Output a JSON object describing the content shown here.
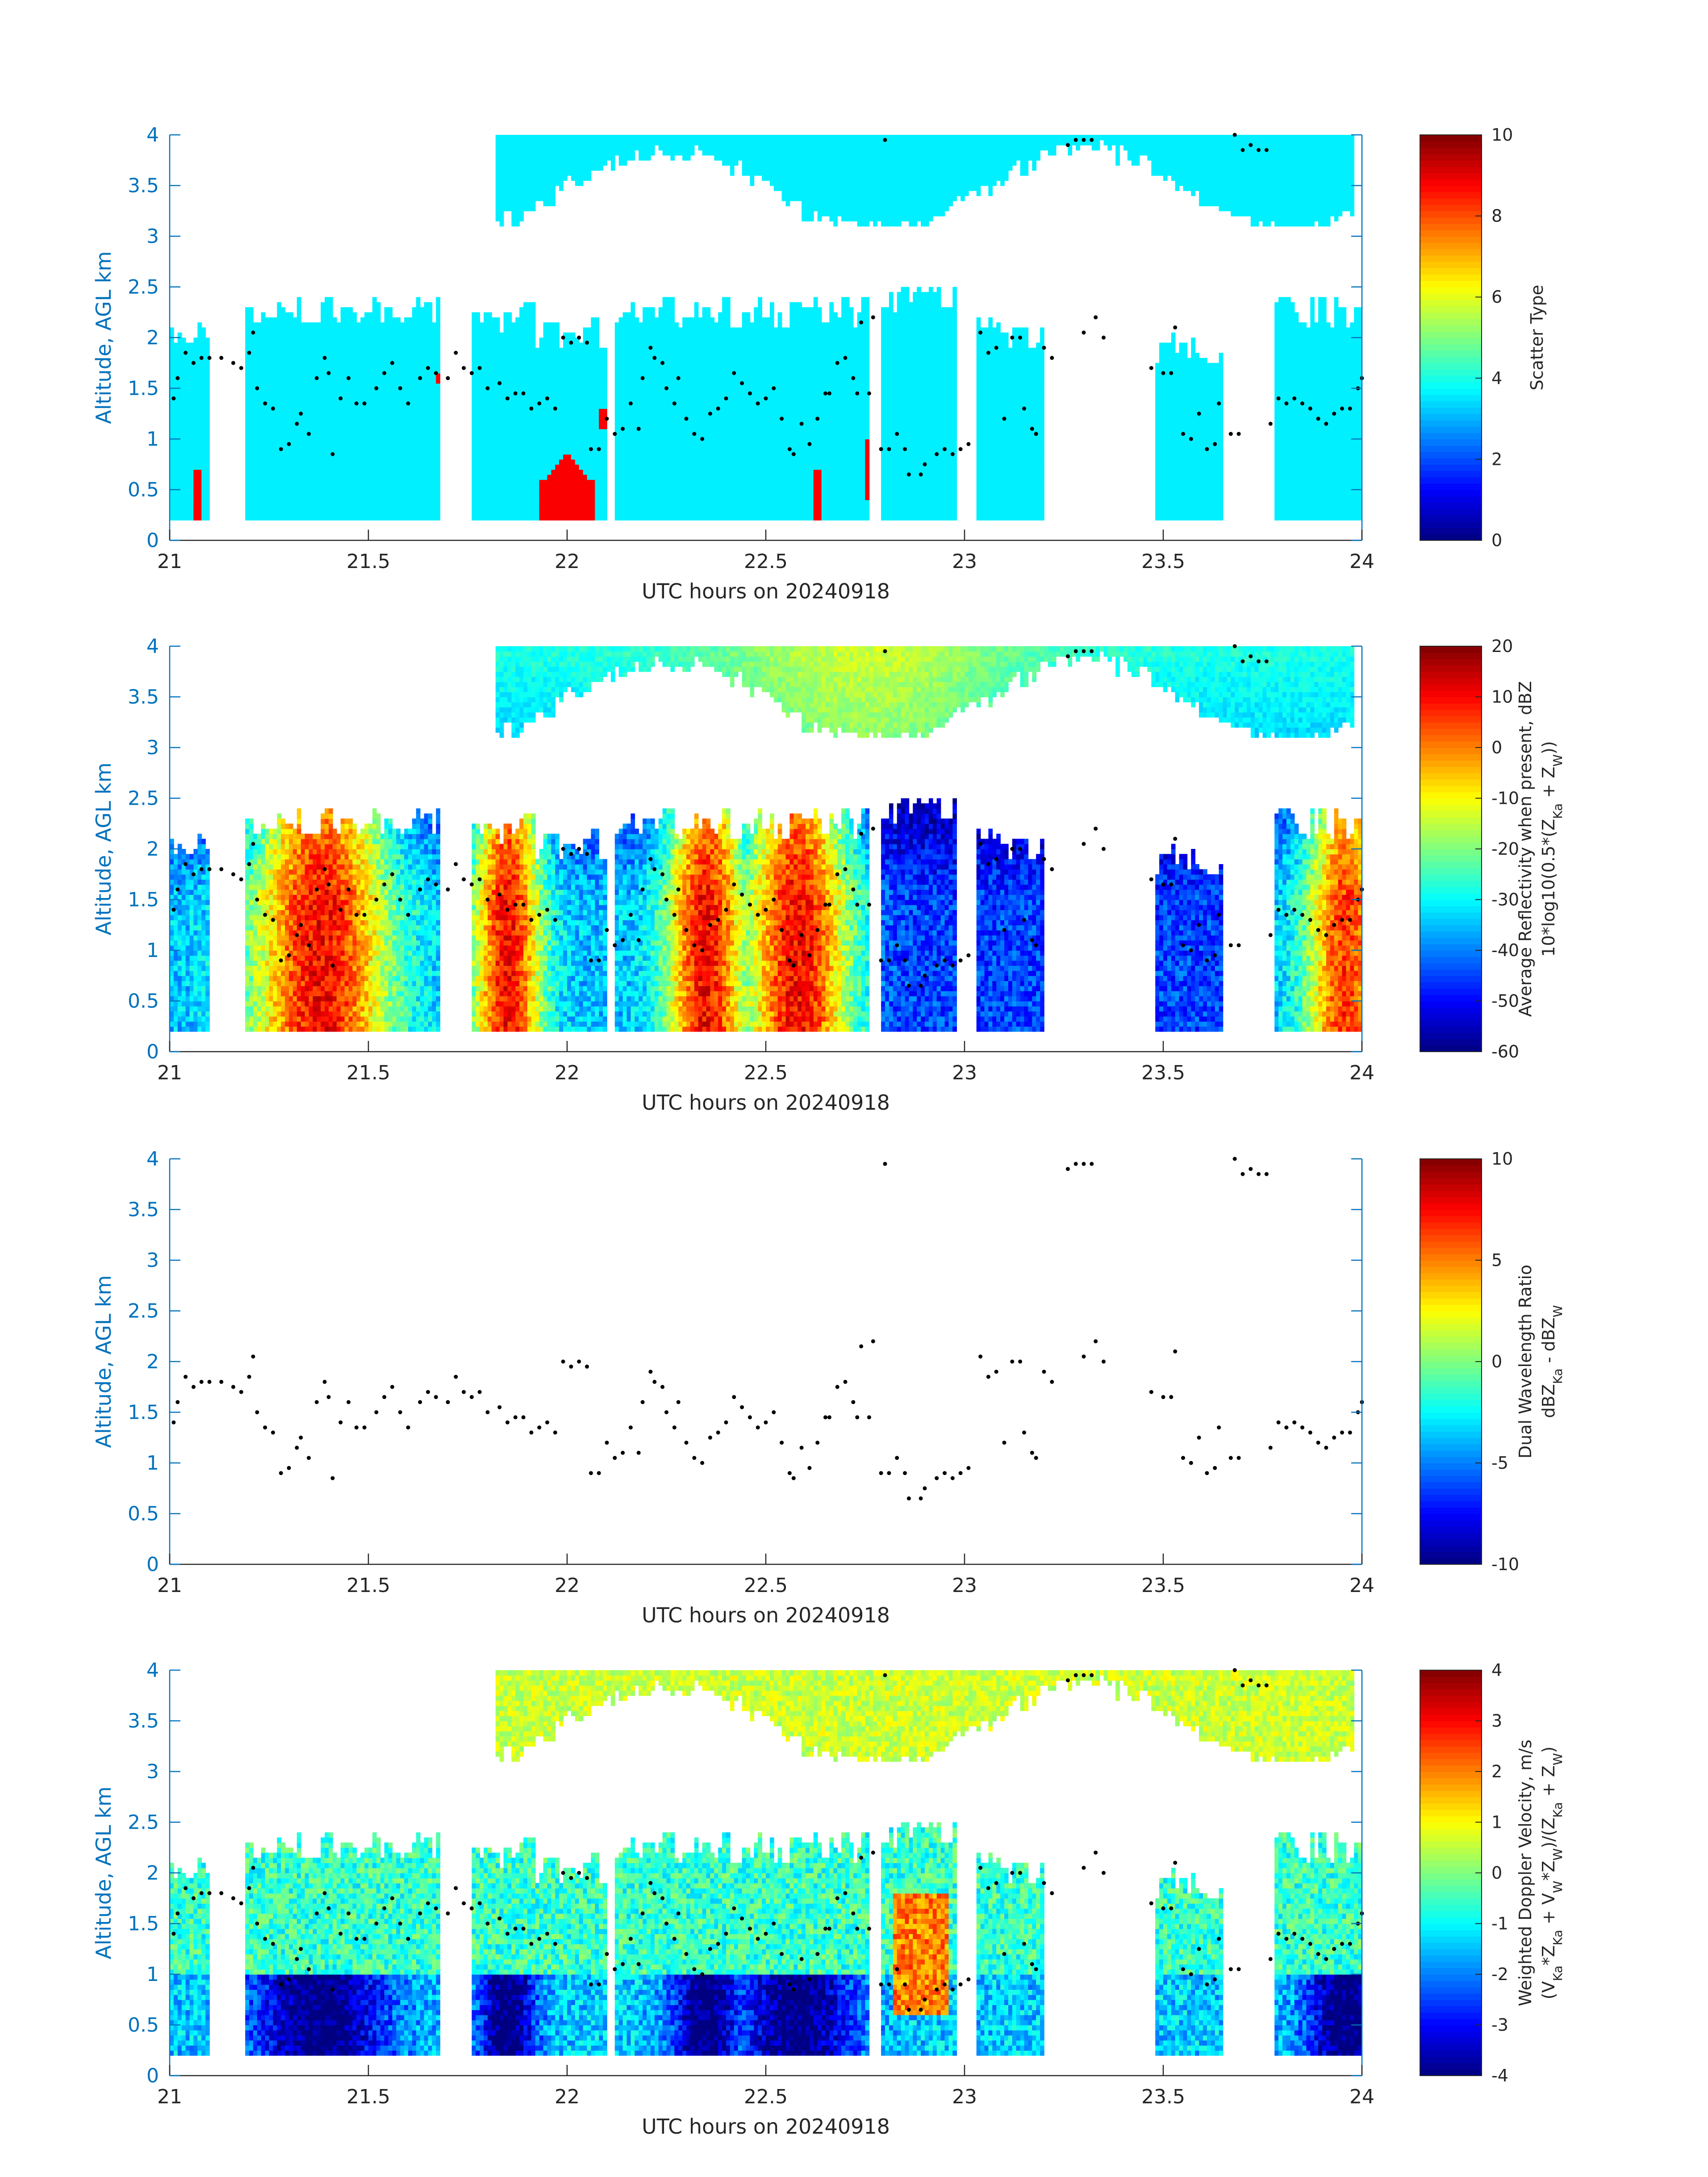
{
  "chart_data": [
    {
      "type": "heatmap",
      "quantity": "scatter",
      "xlabel": "UTC hours on 20240918",
      "ylabel": "Altitude, AGL km",
      "xlim": [
        21,
        24
      ],
      "ylim": [
        0,
        4
      ],
      "xticks": [
        "21",
        "21.5",
        "22",
        "22.5",
        "23",
        "23.5",
        "24"
      ],
      "yticks": [
        "0",
        "0.5",
        "1",
        "1.5",
        "2",
        "2.5",
        "3",
        "3.5",
        "4"
      ],
      "colorbar": {
        "label_lines": [
          "Scatter Type"
        ],
        "clim": [
          0,
          10
        ],
        "ticks": [
          "0",
          "2",
          "4",
          "6",
          "8",
          "10"
        ],
        "colormap": "jet"
      },
      "dominant_value": 3.6,
      "secondary_value": 8.8
    },
    {
      "type": "heatmap",
      "quantity": "refl",
      "xlabel": "UTC hours on 20240918",
      "ylabel": "Altitude, AGL km",
      "xlim": [
        21,
        24
      ],
      "ylim": [
        0,
        4
      ],
      "xticks": [
        "21",
        "21.5",
        "22",
        "22.5",
        "23",
        "23.5",
        "24"
      ],
      "yticks": [
        "0",
        "0.5",
        "1",
        "1.5",
        "2",
        "2.5",
        "3",
        "3.5",
        "4"
      ],
      "colorbar": {
        "label_lines": [
          "Average Reflectivity when present, dBZ",
          "10*log10(0.5*(Z_Ka + Z_W))"
        ],
        "clim": [
          -60,
          20
        ],
        "ticks": [
          "-60",
          "-50",
          "-40",
          "-30",
          "-20",
          "-10",
          "0",
          "10",
          "20"
        ],
        "colormap": "jet"
      }
    },
    {
      "type": "heatmap",
      "quantity": "dwr",
      "xlabel": "UTC hours on 20240918",
      "ylabel": "Altitude, AGL km",
      "xlim": [
        21,
        24
      ],
      "ylim": [
        0,
        4
      ],
      "xticks": [
        "21",
        "21.5",
        "22",
        "22.5",
        "23",
        "23.5",
        "24"
      ],
      "yticks": [
        "0",
        "0.5",
        "1",
        "1.5",
        "2",
        "2.5",
        "3",
        "3.5",
        "4"
      ],
      "colorbar": {
        "label_lines": [
          "Dual Wavelength Ratio",
          "dBZ_Ka - dBZ_W"
        ],
        "clim": [
          -10,
          10
        ],
        "ticks": [
          "-10",
          "-5",
          "0",
          "5",
          "10"
        ],
        "colormap": "jet"
      }
    },
    {
      "type": "heatmap",
      "quantity": "vel",
      "xlabel": "UTC hours on 20240918",
      "ylabel": "Altitude, AGL km",
      "xlim": [
        21,
        24
      ],
      "ylim": [
        0,
        4
      ],
      "xticks": [
        "21",
        "21.5",
        "22",
        "22.5",
        "23",
        "23.5",
        "24"
      ],
      "yticks": [
        "0",
        "0.5",
        "1",
        "1.5",
        "2",
        "2.5",
        "3",
        "3.5",
        "4"
      ],
      "colorbar": {
        "label_lines": [
          "Weighted Doppler Velocity, m/s",
          "(V_Ka*Z_Ka + V_W*Z_W)/(Z_Ka + Z_W)"
        ],
        "clim": [
          -4,
          4
        ],
        "ticks": [
          "-4",
          "-3",
          "-2",
          "-1",
          "0",
          "1",
          "2",
          "3",
          "4"
        ],
        "colormap": "jet"
      }
    }
  ],
  "cloud_regions": [
    {
      "t0": 21.0,
      "t1": 21.1,
      "bottom_km": 0.2,
      "top_km": 2.0
    },
    {
      "t0": 21.19,
      "t1": 21.68,
      "bottom_km": 0.2,
      "top_km": 2.25
    },
    {
      "t0": 21.76,
      "t1": 21.92,
      "bottom_km": 0.2,
      "top_km": 2.2
    },
    {
      "t0": 21.92,
      "t1": 22.1,
      "bottom_km": 0.2,
      "top_km": 2.05
    },
    {
      "t0": 22.12,
      "t1": 22.76,
      "bottom_km": 0.2,
      "top_km": 2.25
    },
    {
      "t0": 22.79,
      "t1": 22.98,
      "bottom_km": 0.2,
      "top_km": 2.35
    },
    {
      "t0": 23.03,
      "t1": 23.2,
      "bottom_km": 0.2,
      "top_km": 2.05
    },
    {
      "t0": 23.48,
      "t1": 23.65,
      "bottom_km": 0.2,
      "top_km": 1.9
    },
    {
      "t0": 23.78,
      "t1": 24.0,
      "bottom_km": 0.2,
      "top_km": 2.25
    },
    {
      "t0": 21.82,
      "t1": 23.98,
      "bottom_km": 3.1,
      "top_km": 4.0
    }
  ],
  "cloud_base_points": [
    [
      21.01,
      1.4
    ],
    [
      21.02,
      1.6
    ],
    [
      21.04,
      1.85
    ],
    [
      21.06,
      1.75
    ],
    [
      21.08,
      1.8
    ],
    [
      21.1,
      1.8
    ],
    [
      21.13,
      1.8
    ],
    [
      21.16,
      1.75
    ],
    [
      21.18,
      1.7
    ],
    [
      21.2,
      1.85
    ],
    [
      21.21,
      2.05
    ],
    [
      21.22,
      1.5
    ],
    [
      21.24,
      1.35
    ],
    [
      21.26,
      1.3
    ],
    [
      21.28,
      0.9
    ],
    [
      21.3,
      0.95
    ],
    [
      21.32,
      1.15
    ],
    [
      21.33,
      1.25
    ],
    [
      21.35,
      1.05
    ],
    [
      21.37,
      1.6
    ],
    [
      21.39,
      1.8
    ],
    [
      21.4,
      1.65
    ],
    [
      21.41,
      0.85
    ],
    [
      21.43,
      1.4
    ],
    [
      21.45,
      1.6
    ],
    [
      21.47,
      1.35
    ],
    [
      21.49,
      1.35
    ],
    [
      21.52,
      1.5
    ],
    [
      21.54,
      1.65
    ],
    [
      21.56,
      1.75
    ],
    [
      21.58,
      1.5
    ],
    [
      21.6,
      1.35
    ],
    [
      21.63,
      1.6
    ],
    [
      21.65,
      1.7
    ],
    [
      21.67,
      1.65
    ],
    [
      21.7,
      1.6
    ],
    [
      21.72,
      1.85
    ],
    [
      21.74,
      1.7
    ],
    [
      21.76,
      1.65
    ],
    [
      21.78,
      1.7
    ],
    [
      21.8,
      1.5
    ],
    [
      21.83,
      1.55
    ],
    [
      21.85,
      1.4
    ],
    [
      21.87,
      1.45
    ],
    [
      21.89,
      1.45
    ],
    [
      21.91,
      1.3
    ],
    [
      21.93,
      1.35
    ],
    [
      21.95,
      1.4
    ],
    [
      21.97,
      1.3
    ],
    [
      21.99,
      2.0
    ],
    [
      22.01,
      1.95
    ],
    [
      22.03,
      2.0
    ],
    [
      22.05,
      1.95
    ],
    [
      22.06,
      0.9
    ],
    [
      22.08,
      0.9
    ],
    [
      22.1,
      1.2
    ],
    [
      22.12,
      1.05
    ],
    [
      22.14,
      1.1
    ],
    [
      22.16,
      1.35
    ],
    [
      22.18,
      1.1
    ],
    [
      22.19,
      1.6
    ],
    [
      22.21,
      1.9
    ],
    [
      22.22,
      1.8
    ],
    [
      22.24,
      1.75
    ],
    [
      22.25,
      1.5
    ],
    [
      22.27,
      1.35
    ],
    [
      22.28,
      1.6
    ],
    [
      22.3,
      1.2
    ],
    [
      22.32,
      1.05
    ],
    [
      22.34,
      1.0
    ],
    [
      22.36,
      1.25
    ],
    [
      22.38,
      1.3
    ],
    [
      22.4,
      1.4
    ],
    [
      22.42,
      1.65
    ],
    [
      22.44,
      1.55
    ],
    [
      22.46,
      1.45
    ],
    [
      22.48,
      1.35
    ],
    [
      22.5,
      1.4
    ],
    [
      22.52,
      1.5
    ],
    [
      22.54,
      1.2
    ],
    [
      22.56,
      0.9
    ],
    [
      22.57,
      0.85
    ],
    [
      22.59,
      1.15
    ],
    [
      22.61,
      0.95
    ],
    [
      22.63,
      1.2
    ],
    [
      22.65,
      1.45
    ],
    [
      22.66,
      1.45
    ],
    [
      22.68,
      1.75
    ],
    [
      22.7,
      1.8
    ],
    [
      22.72,
      1.6
    ],
    [
      22.73,
      1.45
    ],
    [
      22.74,
      2.15
    ],
    [
      22.76,
      1.45
    ],
    [
      22.77,
      2.2
    ],
    [
      22.79,
      0.9
    ],
    [
      22.8,
      3.95
    ],
    [
      22.81,
      0.9
    ],
    [
      22.83,
      1.05
    ],
    [
      22.85,
      0.9
    ],
    [
      22.86,
      0.65
    ],
    [
      22.89,
      0.65
    ],
    [
      22.9,
      0.75
    ],
    [
      22.93,
      0.85
    ],
    [
      22.95,
      0.9
    ],
    [
      22.97,
      0.85
    ],
    [
      22.99,
      0.9
    ],
    [
      23.01,
      0.95
    ],
    [
      23.04,
      2.05
    ],
    [
      23.06,
      1.85
    ],
    [
      23.08,
      1.9
    ],
    [
      23.1,
      1.2
    ],
    [
      23.12,
      2.0
    ],
    [
      23.14,
      2.0
    ],
    [
      23.15,
      1.3
    ],
    [
      23.17,
      1.1
    ],
    [
      23.18,
      1.05
    ],
    [
      23.2,
      1.9
    ],
    [
      23.22,
      1.8
    ],
    [
      23.26,
      3.9
    ],
    [
      23.28,
      3.95
    ],
    [
      23.3,
      3.95
    ],
    [
      23.32,
      3.95
    ],
    [
      23.3,
      2.05
    ],
    [
      23.33,
      2.2
    ],
    [
      23.35,
      2.0
    ],
    [
      23.47,
      1.7
    ],
    [
      23.5,
      1.65
    ],
    [
      23.52,
      1.65
    ],
    [
      23.53,
      2.1
    ],
    [
      23.55,
      1.05
    ],
    [
      23.57,
      1.0
    ],
    [
      23.59,
      1.25
    ],
    [
      23.61,
      0.9
    ],
    [
      23.63,
      0.95
    ],
    [
      23.64,
      1.35
    ],
    [
      23.67,
      1.05
    ],
    [
      23.69,
      1.05
    ],
    [
      23.68,
      4.0
    ],
    [
      23.7,
      3.85
    ],
    [
      23.72,
      3.9
    ],
    [
      23.74,
      3.85
    ],
    [
      23.76,
      3.85
    ],
    [
      23.77,
      1.15
    ],
    [
      23.79,
      1.4
    ],
    [
      23.81,
      1.35
    ],
    [
      23.83,
      1.4
    ],
    [
      23.85,
      1.35
    ],
    [
      23.87,
      1.3
    ],
    [
      23.89,
      1.2
    ],
    [
      23.91,
      1.15
    ],
    [
      23.93,
      1.25
    ],
    [
      23.95,
      1.3
    ],
    [
      23.97,
      1.3
    ],
    [
      23.99,
      1.5
    ],
    [
      24.0,
      1.6
    ]
  ]
}
